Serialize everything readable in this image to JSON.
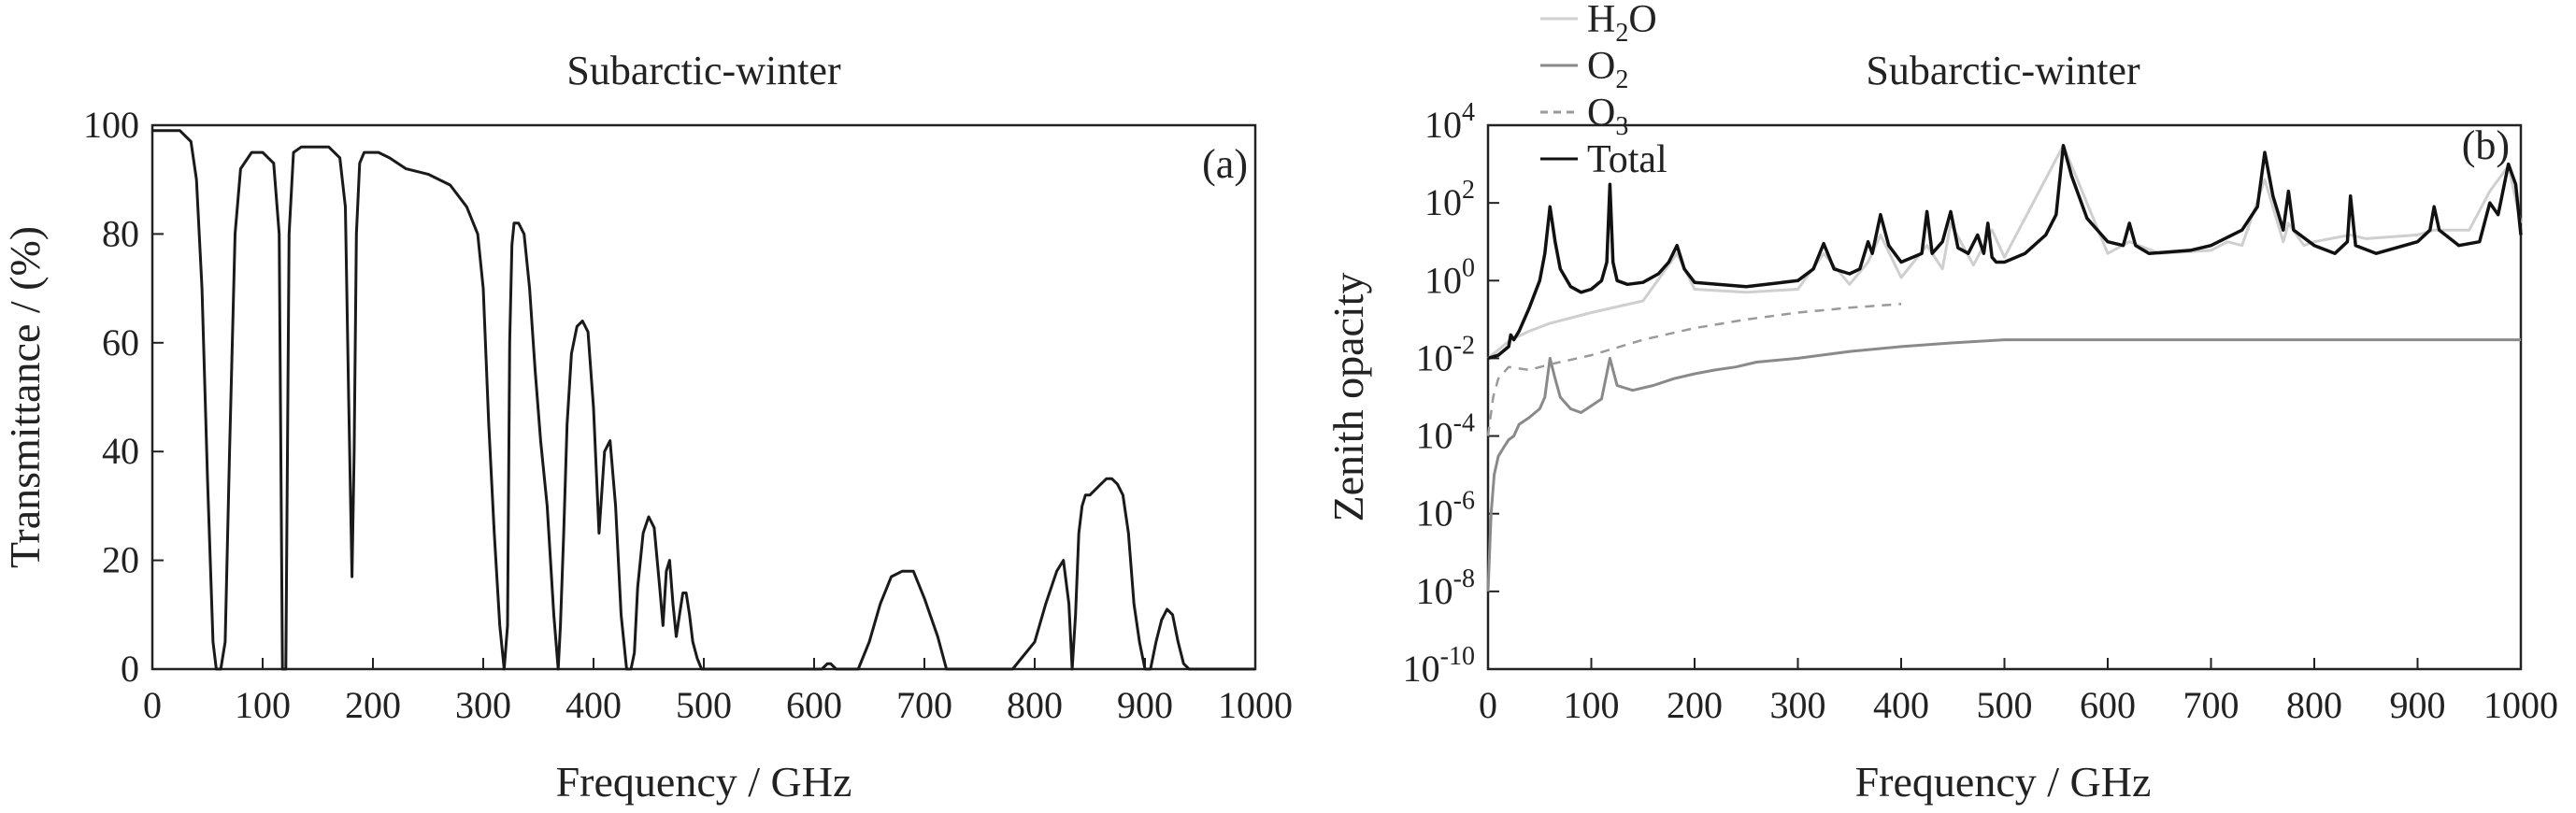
{
  "chart_data": [
    {
      "type": "line",
      "title": "Subarctic-winter",
      "panel_label": "(a)",
      "xlabel": "Frequency / GHz",
      "ylabel": "Transmittance / (%)",
      "xlim": [
        0,
        1000
      ],
      "ylim": [
        0,
        100
      ],
      "xticks": [
        "0",
        "100",
        "200",
        "300",
        "400",
        "500",
        "600",
        "700",
        "800",
        "900",
        "1000"
      ],
      "yticks": [
        "0",
        "20",
        "40",
        "60",
        "80",
        "100"
      ],
      "grid": false,
      "series": [
        {
          "name": "",
          "color": "#1a1a1a",
          "x": [
            0,
            15,
            25,
            35,
            40,
            45,
            50,
            55,
            58,
            62,
            66,
            70,
            75,
            80,
            90,
            100,
            110,
            115,
            118,
            121,
            124,
            128,
            135,
            145,
            160,
            170,
            175,
            178,
            181,
            183,
            185,
            188,
            192,
            198,
            205,
            215,
            230,
            250,
            270,
            285,
            295,
            300,
            305,
            310,
            315,
            319,
            322,
            324,
            326,
            328,
            332,
            337,
            342,
            347,
            352,
            358,
            364,
            368,
            370,
            373,
            376,
            380,
            385,
            390,
            395,
            400,
            405,
            410,
            415,
            420,
            425,
            430,
            434,
            437,
            440,
            445,
            450,
            455,
            460,
            463,
            466,
            469,
            472,
            475,
            478,
            481,
            484,
            487,
            490,
            494,
            498,
            502,
            506,
            510,
            515,
            520,
            530,
            550,
            580,
            600,
            607,
            612,
            615,
            620,
            628,
            640,
            650,
            660,
            670,
            680,
            690,
            700,
            712,
            720,
            740,
            760,
            780,
            800,
            810,
            820,
            826,
            831,
            834,
            837,
            840,
            843,
            846,
            850,
            855,
            860,
            865,
            870,
            875,
            880,
            885,
            890,
            895,
            900,
            905,
            910,
            915,
            920,
            925,
            930,
            935,
            940,
            945,
            950,
            955,
            960,
            1000
          ],
          "y": [
            99,
            99,
            99,
            97,
            90,
            70,
            35,
            5,
            0,
            0,
            5,
            40,
            80,
            92,
            95,
            95,
            93,
            80,
            0,
            0,
            80,
            95,
            96,
            96,
            96,
            94,
            85,
            50,
            17,
            40,
            80,
            93,
            95,
            95,
            95,
            94,
            92,
            91,
            89,
            85,
            80,
            70,
            45,
            25,
            8,
            0,
            8,
            60,
            78,
            82,
            82,
            80,
            70,
            55,
            42,
            30,
            10,
            0,
            8,
            25,
            45,
            58,
            63,
            64,
            62,
            48,
            25,
            40,
            42,
            30,
            10,
            0,
            0,
            3,
            15,
            25,
            28,
            26,
            15,
            8,
            18,
            20,
            12,
            6,
            10,
            14,
            14,
            10,
            5,
            2,
            0,
            0,
            0,
            0,
            0,
            0,
            0,
            0,
            0,
            0,
            0,
            1,
            1,
            0,
            0,
            0,
            5,
            12,
            17,
            18,
            18,
            13,
            6,
            0,
            0,
            0,
            0,
            5,
            12,
            18,
            20,
            12,
            0,
            10,
            25,
            30,
            32,
            32,
            33,
            34,
            35,
            35,
            34,
            32,
            25,
            12,
            5,
            0,
            0,
            5,
            9,
            11,
            10,
            5,
            1,
            0,
            0,
            0,
            0,
            0,
            0
          ]
        }
      ]
    },
    {
      "type": "line",
      "title": "Subarctic-winter",
      "panel_label": "(b)",
      "xlabel": "Frequency / GHz",
      "ylabel": "Zenith opacity",
      "xlim": [
        0,
        1000
      ],
      "ylim": [
        1e-10,
        10000
      ],
      "log_y": true,
      "xticks": [
        "0",
        "100",
        "200",
        "300",
        "400",
        "500",
        "600",
        "700",
        "800",
        "900",
        "1000"
      ],
      "yticks": [
        {
          "base": "10",
          "exp": "4",
          "value": 10000
        },
        {
          "base": "10",
          "exp": "2",
          "value": 100
        },
        {
          "base": "10",
          "exp": "0",
          "value": 1
        },
        {
          "base": "10",
          "exp": "-2",
          "value": 0.01
        },
        {
          "base": "10",
          "exp": "-4",
          "value": 0.0001
        },
        {
          "base": "10",
          "exp": "-6",
          "value": 1e-06
        },
        {
          "base": "10",
          "exp": "-8",
          "value": 1e-08
        },
        {
          "base": "10",
          "exp": "-10",
          "value": 1e-10
        }
      ],
      "legend_position": "top-left, outside above plot",
      "grid": false,
      "series": [
        {
          "name": "H2O",
          "legend_base": "H",
          "legend_sub": "2",
          "legend_rest": "O",
          "color": "#cfcfcf",
          "dash": "none",
          "x": [
            0,
            22,
            40,
            60,
            100,
            150,
            183,
            200,
            250,
            300,
            325,
            350,
            368,
            380,
            400,
            425,
            440,
            448,
            470,
            488,
            500,
            557,
            600,
            621,
            650,
            700,
            716,
            730,
            752,
            770,
            775,
            790,
            800,
            835,
            850,
            900,
            916,
            950,
            970,
            988,
            1000
          ],
          "y": [
            0.01,
            0.03,
            0.05,
            0.08,
            0.15,
            0.3,
            5,
            0.6,
            0.5,
            0.6,
            5,
            0.8,
            3,
            15,
            1.2,
            8,
            2,
            30,
            2.5,
            20,
            4,
            3000,
            5,
            10,
            5,
            6,
            10,
            8,
            400,
            10,
            30,
            8,
            10,
            15,
            12,
            15,
            20,
            20,
            200,
            900,
            30
          ]
        },
        {
          "name": "O2",
          "legend_base": "O",
          "legend_sub": "2",
          "legend_rest": "",
          "color": "#8a8a8a",
          "dash": "none",
          "x": [
            0,
            3,
            6,
            10,
            15,
            20,
            25,
            30,
            40,
            50,
            55,
            60,
            65,
            70,
            80,
            90,
            100,
            110,
            118,
            125,
            140,
            160,
            180,
            200,
            220,
            240,
            260,
            300,
            350,
            400,
            450,
            500,
            550,
            600,
            650,
            700,
            750,
            800,
            850,
            900,
            950,
            1000
          ],
          "y": [
            1e-08,
            1e-06,
            1e-05,
            3e-05,
            5e-05,
            8e-05,
            0.0001,
            0.0002,
            0.0003,
            0.0005,
            0.001,
            0.01,
            0.003,
            0.001,
            0.0005,
            0.0004,
            0.0006,
            0.0009,
            0.01,
            0.002,
            0.0015,
            0.002,
            0.003,
            0.004,
            0.005,
            0.006,
            0.008,
            0.01,
            0.015,
            0.02,
            0.025,
            0.03,
            0.03,
            0.03,
            0.03,
            0.03,
            0.03,
            0.03,
            0.03,
            0.03,
            0.03,
            0.03
          ]
        },
        {
          "name": "O3",
          "legend_base": "O",
          "legend_sub": "3",
          "legend_rest": "",
          "color": "#9a9a9a",
          "dash": "10,8",
          "x": [
            0,
            5,
            10,
            20,
            40,
            60,
            100,
            150,
            200,
            250,
            300,
            350,
            400
          ],
          "y": [
            0.0001,
            0.001,
            0.003,
            0.006,
            0.005,
            0.007,
            0.012,
            0.03,
            0.06,
            0.1,
            0.15,
            0.2,
            0.25
          ]
        },
        {
          "name": "Total",
          "legend_base": "Total",
          "legend_sub": "",
          "legend_rest": "",
          "color": "#111111",
          "dash": "none",
          "x": [
            0,
            10,
            20,
            22,
            25,
            30,
            40,
            50,
            55,
            60,
            65,
            70,
            80,
            90,
            100,
            110,
            115,
            118,
            121,
            125,
            135,
            150,
            165,
            175,
            183,
            190,
            200,
            250,
            300,
            315,
            325,
            335,
            350,
            360,
            368,
            372,
            380,
            388,
            400,
            420,
            425,
            430,
            440,
            448,
            455,
            465,
            474,
            480,
            484,
            488,
            492,
            500,
            520,
            540,
            550,
            557,
            565,
            580,
            600,
            615,
            621,
            627,
            640,
            680,
            700,
            730,
            745,
            752,
            760,
            770,
            775,
            780,
            800,
            820,
            832,
            835,
            840,
            860,
            900,
            912,
            916,
            921,
            940,
            960,
            970,
            978,
            988,
            995,
            1000
          ],
          "y": [
            0.01,
            0.012,
            0.02,
            0.04,
            0.03,
            0.05,
            0.2,
            1,
            5,
            80,
            10,
            2,
            0.7,
            0.5,
            0.6,
            1,
            3,
            300,
            3,
            1,
            0.8,
            0.9,
            1.5,
            3,
            8,
            2,
            0.9,
            0.7,
            1,
            2,
            9,
            2,
            1.5,
            2,
            10,
            5,
            50,
            8,
            3,
            5,
            60,
            5,
            10,
            60,
            7,
            5,
            15,
            5,
            30,
            4,
            3,
            3,
            5,
            15,
            50,
            3000,
            500,
            40,
            10,
            8,
            30,
            8,
            5,
            6,
            8,
            20,
            80,
            2000,
            150,
            20,
            200,
            20,
            8,
            5,
            10,
            150,
            8,
            5,
            10,
            20,
            80,
            20,
            8,
            10,
            100,
            50,
            1000,
            300,
            15
          ]
        }
      ]
    }
  ]
}
